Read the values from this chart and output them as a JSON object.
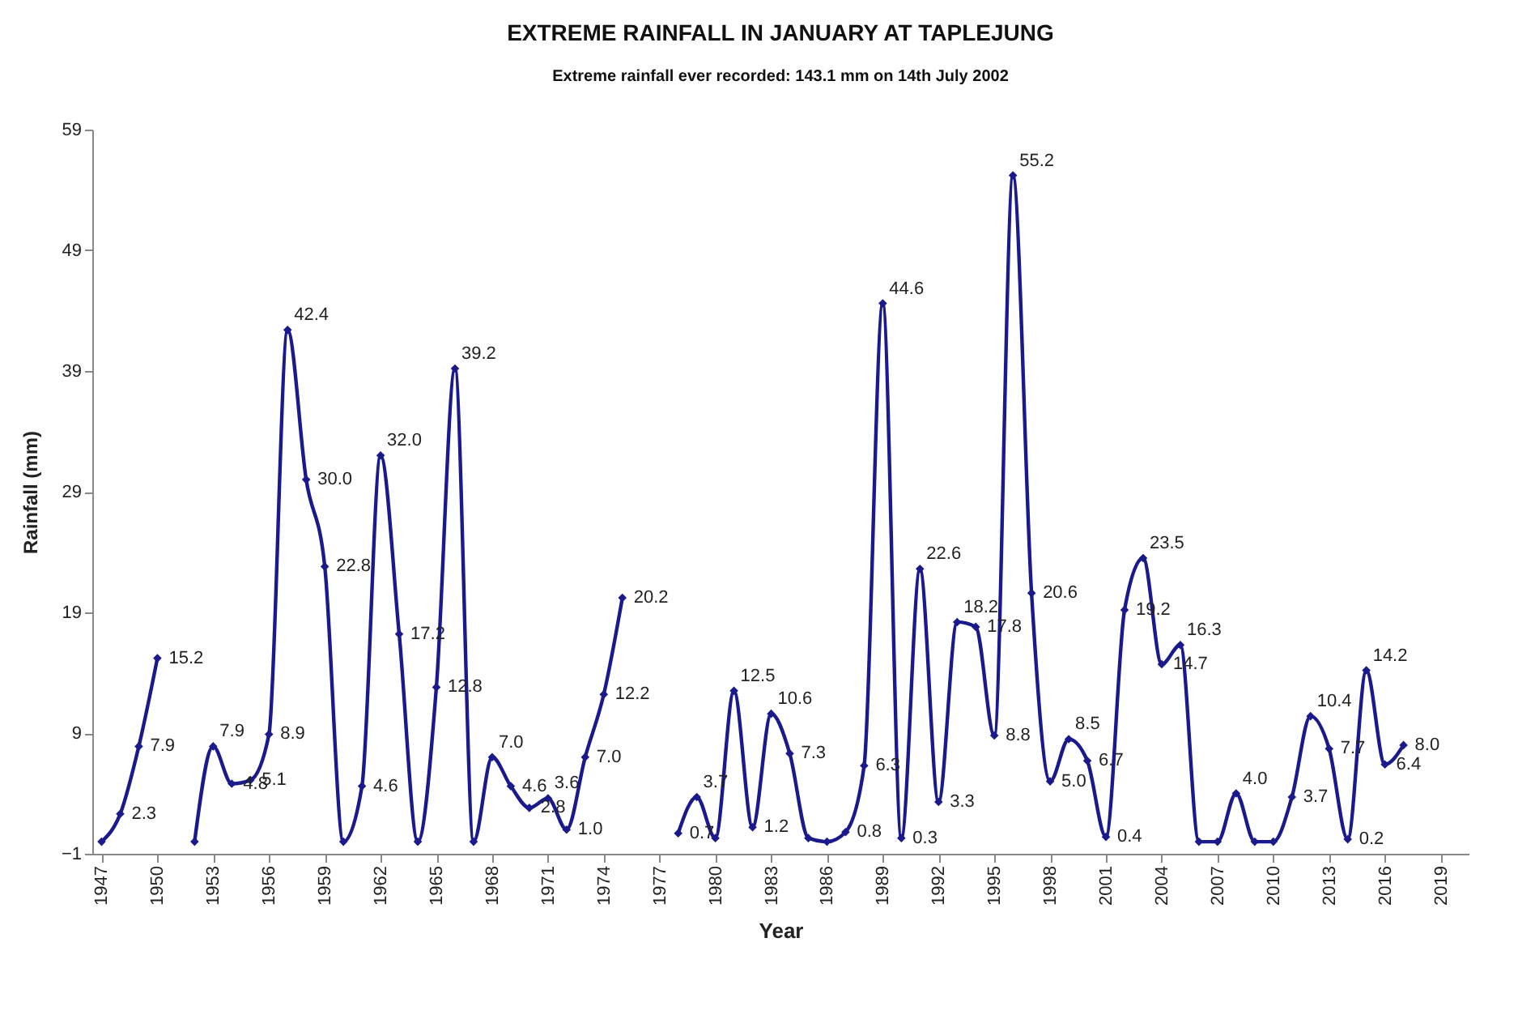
{
  "chart_data": {
    "type": "line",
    "title": "EXTREME RAINFALL IN JANUARY AT TAPLEJUNG",
    "subtitle": "Extreme rainfall ever recorded: 143.1 mm on 14th July 2002",
    "xlabel": "Year",
    "ylabel": "Rainfall (mm)",
    "x": [
      1947,
      1948,
      1949,
      1950,
      1951,
      1952,
      1953,
      1954,
      1955,
      1956,
      1957,
      1958,
      1959,
      1960,
      1961,
      1962,
      1963,
      1964,
      1965,
      1966,
      1967,
      1968,
      1969,
      1970,
      1971,
      1972,
      1973,
      1974,
      1975,
      1976,
      1977,
      1978,
      1979,
      1980,
      1981,
      1982,
      1983,
      1984,
      1985,
      1986,
      1987,
      1988,
      1989,
      1990,
      1991,
      1992,
      1993,
      1994,
      1995,
      1996,
      1997,
      1998,
      1999,
      2000,
      2001,
      2002,
      2003,
      2004,
      2005,
      2006,
      2007,
      2008,
      2009,
      2010,
      2011,
      2012,
      2013,
      2014,
      2015,
      2016,
      2017
    ],
    "series": [
      {
        "color": "#1a1a8c",
        "values": [
          0,
          2.3,
          7.9,
          15.2,
          null,
          0,
          7.9,
          4.8,
          5.1,
          8.9,
          42.4,
          30.0,
          22.8,
          0,
          4.6,
          32.0,
          17.2,
          0,
          12.8,
          39.2,
          0,
          7.0,
          4.6,
          2.8,
          3.6,
          1.0,
          7.0,
          12.2,
          20.2,
          null,
          null,
          0.7,
          3.7,
          0.3,
          12.5,
          1.2,
          10.6,
          7.3,
          0.3,
          0,
          0.8,
          6.3,
          44.6,
          0.3,
          22.6,
          3.3,
          18.2,
          17.8,
          8.8,
          55.2,
          20.6,
          5.0,
          8.5,
          6.7,
          0.4,
          19.2,
          23.5,
          14.7,
          16.3,
          0,
          0,
          4.0,
          0,
          0,
          3.7,
          10.4,
          7.7,
          0.2,
          14.2,
          6.4,
          8.0
        ],
        "value_labels": [
          null,
          "2.3",
          "7.9",
          "15.2",
          null,
          null,
          "7.9",
          "4.8",
          "5.1",
          "8.9",
          "42.4",
          "30.0",
          "22.8",
          null,
          "4.6",
          "32.0",
          "17.2",
          null,
          "12.8",
          "39.2",
          null,
          "7.0",
          "4.6",
          "2.8",
          "3.6",
          "1.0",
          "7.0",
          "12.2",
          "20.2",
          null,
          null,
          "0.7",
          "3.7",
          null,
          "12.5",
          "1.2",
          "10.6",
          "7.3",
          null,
          null,
          "0.8",
          "6.3",
          "44.6",
          "0.3",
          "22.6",
          "3.3",
          "18.2",
          "17.8",
          "8.8",
          "55.2",
          "20.6",
          "5.0",
          "8.5",
          "6.7",
          "0.4",
          "19.2",
          "23.5",
          "14.7",
          "16.3",
          null,
          null,
          "4.0",
          null,
          null,
          "3.7",
          "10.4",
          "7.7",
          "0.2",
          "14.2",
          "6.4",
          "8.0"
        ]
      }
    ],
    "xlim": [
      1946.5,
      2020.5
    ],
    "xticks": [
      1947,
      1950,
      1953,
      1956,
      1959,
      1962,
      1965,
      1968,
      1971,
      1974,
      1977,
      1980,
      1983,
      1986,
      1989,
      1992,
      1995,
      1998,
      2001,
      2004,
      2007,
      2010,
      2013,
      2016,
      2019
    ],
    "ylim": [
      -1,
      59
    ],
    "yticks": [
      -1,
      9,
      19,
      29,
      39,
      49,
      59
    ],
    "grid": false,
    "legend": false,
    "marker": "diamond",
    "line_style": "solid"
  }
}
